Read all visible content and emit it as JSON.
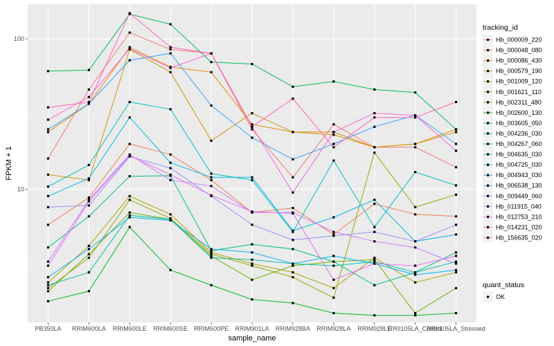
{
  "chart_data": {
    "type": "line",
    "title": "",
    "xlabel": "sample_name",
    "ylabel": "FPKM + 1",
    "y_scale": "log10",
    "ylim": [
      1.3,
      170
    ],
    "grid": true,
    "legend_position": "right",
    "background": "#ebebeb",
    "categories": [
      "PB350LA",
      "RRIM600LA",
      "RRIM600LE",
      "RRIM600SE",
      "RRIM600PE",
      "RRIM901LA",
      "RRIM928BA",
      "RRIM928LA",
      "RRIM928LE",
      "RRII105LA_Control",
      "RRII105LA_Stressed"
    ],
    "y_ticks": [
      10,
      100
    ],
    "y_tick_labels": [
      "10",
      "100"
    ],
    "legend_title": "tracking_id",
    "legend2_title": "quant_status",
    "legend2_items": [
      "OK"
    ],
    "series": [
      {
        "name": "Hb_000009_220",
        "color": "#F8766D",
        "values": [
          16,
          46,
          110,
          85,
          80,
          25,
          12,
          27,
          19,
          19,
          14
        ]
      },
      {
        "name": "Hb_000048_080",
        "color": "#F07E4B",
        "values": [
          5.8,
          8.8,
          20,
          17,
          11.5,
          7,
          7.5,
          5,
          8,
          6.8,
          6.6
        ]
      },
      {
        "name": "Hb_000086_430",
        "color": "#E38900",
        "values": [
          24,
          37,
          88,
          65,
          60,
          27,
          24,
          24,
          19,
          20,
          25
        ]
      },
      {
        "name": "Hb_000579_190",
        "color": "#CE9700",
        "values": [
          12.5,
          11.5,
          85,
          60,
          21,
          32,
          24,
          23,
          19,
          20,
          24
        ]
      },
      {
        "name": "Hb_001009_120",
        "color": "#B4A000",
        "values": [
          2.4,
          4.2,
          9,
          6.8,
          3.8,
          3.2,
          2.8,
          2.2,
          3.5,
          2.4,
          2.8
        ]
      },
      {
        "name": "Hb_001621_110",
        "color": "#95A900",
        "values": [
          2.2,
          3.5,
          8.5,
          6.4,
          3.7,
          3.1,
          2.6,
          1.9,
          17.5,
          7.6,
          9.2
        ]
      },
      {
        "name": "Hb_002311_480",
        "color": "#6BB100",
        "values": [
          2.1,
          3.7,
          7,
          6.3,
          3.6,
          2.5,
          3.1,
          3.3,
          3.4,
          1.5,
          2.2
        ]
      },
      {
        "name": "Hb_002600_130",
        "color": "#00B81F",
        "values": [
          1.8,
          2.1,
          5.6,
          2.9,
          2.3,
          1.85,
          1.75,
          1.5,
          1.45,
          1.45,
          1.5
        ]
      },
      {
        "name": "Hb_003605_050",
        "color": "#00BC5A",
        "values": [
          61,
          62,
          146,
          125,
          70,
          68,
          48,
          52,
          46,
          44,
          25
        ]
      },
      {
        "name": "Hb_004236_030",
        "color": "#00BF84",
        "values": [
          4.1,
          6.6,
          12.2,
          12.3,
          3.9,
          4.3,
          4,
          3.3,
          2.3,
          2.8,
          3.8
        ]
      },
      {
        "name": "Hb_004267_060",
        "color": "#00C0A7",
        "values": [
          2.3,
          2.8,
          6.7,
          6.3,
          3.5,
          3.4,
          3.2,
          3.1,
          3.3,
          2.8,
          3.3
        ]
      },
      {
        "name": "Hb_004635_030",
        "color": "#00BFC4",
        "values": [
          10.4,
          14.5,
          38,
          34,
          12.7,
          11.5,
          5.2,
          15.5,
          5.6,
          13,
          10.6
        ]
      },
      {
        "name": "Hb_004725_030",
        "color": "#00B9E2",
        "values": [
          9,
          11.8,
          30,
          15,
          12,
          12,
          5.3,
          6.5,
          8.5,
          4.5,
          5
        ]
      },
      {
        "name": "Hb_004943_030",
        "color": "#00B0F6",
        "values": [
          2.6,
          4,
          6.5,
          6.2,
          4,
          3.8,
          3.2,
          3.6,
          3.2,
          2.7,
          2.9
        ]
      },
      {
        "name": "Hb_006538_130",
        "color": "#35A2FF",
        "values": [
          25,
          37,
          72,
          80,
          36,
          22,
          15.8,
          20,
          26,
          31,
          20
        ]
      },
      {
        "name": "Hb_009449_060",
        "color": "#9590FF",
        "values": [
          7.6,
          7.8,
          16.5,
          13.8,
          9,
          5.8,
          4.6,
          4.9,
          5.2,
          4.5,
          5.8
        ]
      },
      {
        "name": "Hb_011915_040",
        "color": "#C77CFF",
        "values": [
          3.3,
          8.5,
          17,
          11.5,
          10.5,
          7,
          7,
          5.2,
          4.5,
          4.1,
          3.2
        ]
      },
      {
        "name": "Hb_012753_210",
        "color": "#E76BF3",
        "values": [
          3.1,
          8.3,
          16.7,
          12.5,
          9.1,
          7.1,
          6.9,
          2.5,
          3.2,
          3.1,
          3.6
        ]
      },
      {
        "name": "Hb_014231_020",
        "color": "#FA62DB",
        "values": [
          29,
          41,
          86,
          64,
          80,
          26,
          9.5,
          24,
          32,
          31,
          18
        ]
      },
      {
        "name": "Hb_156635_020",
        "color": "#FF62BC",
        "values": [
          35,
          38,
          148,
          88,
          80,
          26,
          40,
          19,
          30,
          30,
          38
        ]
      }
    ]
  }
}
